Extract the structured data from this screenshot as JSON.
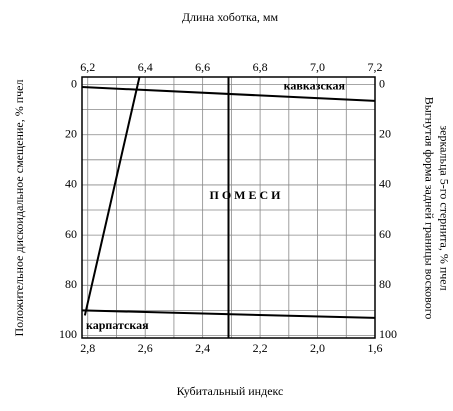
{
  "chart_data": {
    "type": "nomogram",
    "x_label": "Длина хоботка, мм",
    "x2_label": "Кубитальный индекс",
    "y_label": "Положительное дискоидальное смещение, % пчел",
    "y2_label": [
      "Выгнутая форма задней границы воскового",
      "зеркальца 5-го стернита, % пчел"
    ],
    "xlim": [
      6.18,
      7.2
    ],
    "xticks": [
      {
        "value": 6.2,
        "label": "6,2"
      },
      {
        "value": 6.4,
        "label": "6,4"
      },
      {
        "value": 6.6,
        "label": "6,6"
      },
      {
        "value": 6.8,
        "label": "6,8"
      },
      {
        "value": 7.0,
        "label": "7,0"
      },
      {
        "value": 7.2,
        "label": "7,2"
      }
    ],
    "x2_categories": [
      "2,8",
      "2,6",
      "2,4",
      "2,2",
      "2,0",
      "1,6"
    ],
    "x_minor_ticks": [
      6.3,
      6.5,
      6.7,
      6.9,
      7.1
    ],
    "ylim": [
      -3,
      101
    ],
    "yticks": [
      0,
      20,
      40,
      60,
      80,
      100
    ],
    "y_minor_ticks": [
      10,
      30,
      50,
      70,
      90
    ],
    "y2ticks": [
      0,
      20,
      40,
      60,
      80,
      100
    ],
    "grid": true,
    "color": "#000000",
    "annotation": "П О М Е С И",
    "series": [
      {
        "name": "кавказская",
        "x": [
          6.18,
          7.2
        ],
        "values": [
          1,
          6.5
        ]
      },
      {
        "x": [
          6.19,
          6.38
        ],
        "values": [
          92,
          -3
        ]
      },
      {
        "x": [
          6.69,
          6.69
        ],
        "values": [
          -3,
          101
        ]
      },
      {
        "name": "карпатская",
        "x": [
          6.18,
          7.2
        ],
        "values": [
          90,
          93
        ]
      }
    ]
  }
}
